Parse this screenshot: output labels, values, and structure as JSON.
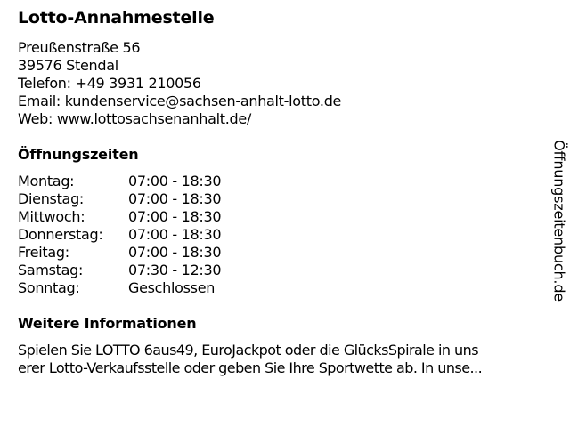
{
  "title": "Lotto-Annahmestelle",
  "address": {
    "street": "Preußenstraße 56",
    "city": "39576 Stendal",
    "phone": "Telefon: +49 3931 210056",
    "email": "Email: kundenservice@sachsen-anhalt-lotto.de",
    "web": "Web: www.lottosachsenanhalt.de/"
  },
  "hours": {
    "heading": "Öffnungszeiten",
    "rows": [
      {
        "day": "Montag:",
        "time": "07:00 - 18:30"
      },
      {
        "day": "Dienstag:",
        "time": "07:00 - 18:30"
      },
      {
        "day": "Mittwoch:",
        "time": "07:00 - 18:30"
      },
      {
        "day": "Donnerstag:",
        "time": "07:00 - 18:30"
      },
      {
        "day": "Freitag:",
        "time": "07:00 - 18:30"
      },
      {
        "day": "Samstag:",
        "time": "07:30 - 12:30"
      },
      {
        "day": "Sonntag:",
        "time": "Geschlossen"
      }
    ]
  },
  "info": {
    "heading": "Weitere Informationen",
    "lines": [
      "Spielen Sie LOTTO 6aus49, EuroJackpot oder die GlücksSpirale in uns",
      "erer Lotto-Verkaufsstelle oder geben Sie Ihre Sportwette ab. In unse..."
    ]
  },
  "watermark": "Öffnungszeitenbuch.de"
}
